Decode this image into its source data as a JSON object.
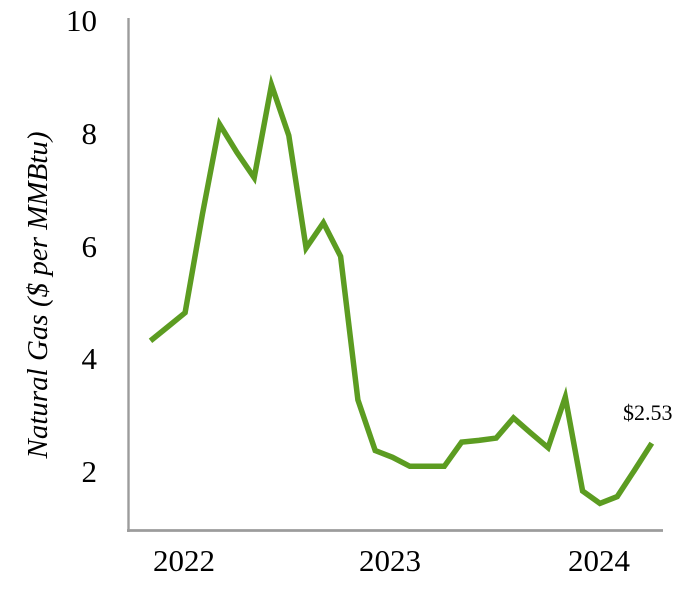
{
  "chart_data": {
    "type": "line",
    "title": "",
    "xlabel": "",
    "ylabel": "Natural Gas ($ per MMBtu)",
    "x": [
      "Jan-2022",
      "Feb-2022",
      "Mar-2022",
      "Apr-2022",
      "May-2022",
      "Jun-2022",
      "Jul-2022",
      "Aug-2022",
      "Sep-2022",
      "Oct-2022",
      "Nov-2022",
      "Dec-2022",
      "Jan-2023",
      "Feb-2023",
      "Mar-2023",
      "Apr-2023",
      "May-2023",
      "Jun-2023",
      "Jul-2023",
      "Aug-2023",
      "Sep-2023",
      "Oct-2023",
      "Nov-2023",
      "Dec-2023",
      "Jan-2024",
      "Feb-2024",
      "Mar-2024",
      "Apr-2024",
      "May-2024",
      "Jun-2024"
    ],
    "series": [
      {
        "name": "Natural Gas price",
        "color": "#5c9c21",
        "values": [
          4.35,
          4.6,
          4.85,
          6.6,
          8.2,
          7.7,
          7.25,
          8.9,
          8.0,
          6.0,
          6.45,
          5.85,
          3.3,
          2.4,
          2.28,
          2.12,
          2.12,
          2.12,
          2.55,
          2.58,
          2.62,
          2.98,
          2.71,
          2.45,
          3.35,
          1.68,
          1.46,
          1.58,
          2.05,
          2.53
        ]
      }
    ],
    "x_tick_labels": [
      "2022",
      "2023",
      "2024"
    ],
    "y_tick_labels": [
      "10",
      "8",
      "6",
      "4",
      "2"
    ],
    "y_ticks": [
      10,
      8,
      6,
      4,
      2
    ],
    "ylim": [
      0.97,
      10.1
    ],
    "grid": false,
    "legend": false,
    "annotation": {
      "text": "$2.53",
      "x": "Jun-2024",
      "y": 2.53
    },
    "axis_color": "#9c9c9c",
    "text_color": "#000000"
  }
}
